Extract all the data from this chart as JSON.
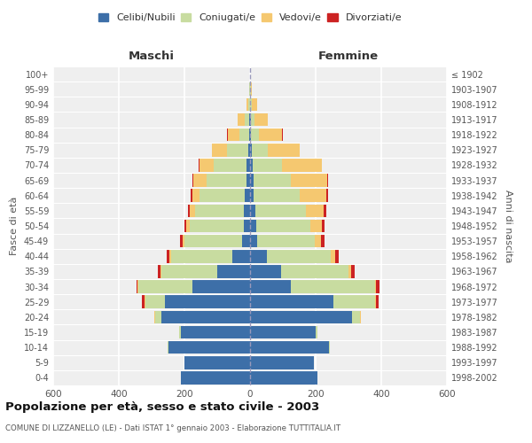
{
  "age_groups": [
    "0-4",
    "5-9",
    "10-14",
    "15-19",
    "20-24",
    "25-29",
    "30-34",
    "35-39",
    "40-44",
    "45-49",
    "50-54",
    "55-59",
    "60-64",
    "65-69",
    "70-74",
    "75-79",
    "80-84",
    "85-89",
    "90-94",
    "95-99",
    "100+"
  ],
  "birth_years": [
    "1998-2002",
    "1993-1997",
    "1988-1992",
    "1983-1987",
    "1978-1982",
    "1973-1977",
    "1968-1972",
    "1963-1967",
    "1958-1962",
    "1953-1957",
    "1948-1952",
    "1943-1947",
    "1938-1942",
    "1933-1937",
    "1928-1932",
    "1923-1927",
    "1918-1922",
    "1913-1917",
    "1908-1912",
    "1903-1907",
    "≤ 1902"
  ],
  "males": {
    "celibi": [
      210,
      200,
      250,
      210,
      270,
      260,
      175,
      100,
      55,
      25,
      20,
      18,
      15,
      12,
      10,
      5,
      3,
      2,
      0,
      0,
      0
    ],
    "coniugati": [
      0,
      0,
      2,
      5,
      20,
      60,
      165,
      170,
      185,
      175,
      165,
      150,
      140,
      120,
      100,
      65,
      30,
      15,
      5,
      2,
      0
    ],
    "vedovi": [
      0,
      0,
      0,
      0,
      1,
      2,
      2,
      2,
      5,
      5,
      10,
      15,
      20,
      40,
      45,
      45,
      35,
      20,
      5,
      1,
      0
    ],
    "divorziati": [
      0,
      0,
      0,
      0,
      2,
      8,
      5,
      8,
      8,
      8,
      5,
      5,
      5,
      3,
      2,
      1,
      1,
      0,
      0,
      0,
      0
    ]
  },
  "females": {
    "nubili": [
      205,
      195,
      240,
      200,
      310,
      255,
      125,
      95,
      50,
      22,
      18,
      15,
      12,
      10,
      8,
      5,
      3,
      2,
      1,
      0,
      0
    ],
    "coniugate": [
      0,
      0,
      2,
      5,
      25,
      125,
      255,
      205,
      195,
      175,
      165,
      155,
      140,
      115,
      90,
      50,
      25,
      12,
      5,
      2,
      0
    ],
    "vedove": [
      0,
      0,
      0,
      0,
      2,
      3,
      5,
      8,
      15,
      20,
      35,
      55,
      80,
      110,
      120,
      95,
      70,
      40,
      15,
      3,
      0
    ],
    "divorziate": [
      0,
      0,
      0,
      0,
      2,
      8,
      10,
      10,
      10,
      10,
      8,
      8,
      5,
      3,
      2,
      1,
      1,
      0,
      0,
      0,
      0
    ]
  },
  "colors": {
    "celibi_nubili": "#3d6fa8",
    "coniugati": "#c8dca0",
    "vedovi": "#f5c870",
    "divorziati": "#cc2222"
  },
  "title": "Popolazione per età, sesso e stato civile - 2003",
  "subtitle": "COMUNE DI LIZZANELLO (LE) - Dati ISTAT 1° gennaio 2003 - Elaborazione TUTTITALIA.IT",
  "xlabel_maschi": "Maschi",
  "xlabel_femmine": "Femmine",
  "ylabel_left": "Fasce di età",
  "ylabel_right": "Anni di nascita",
  "xlim": 600,
  "legend_labels": [
    "Celibi/Nubili",
    "Coniugati/e",
    "Vedovi/e",
    "Divorziati/e"
  ],
  "background_color": "#efefef"
}
